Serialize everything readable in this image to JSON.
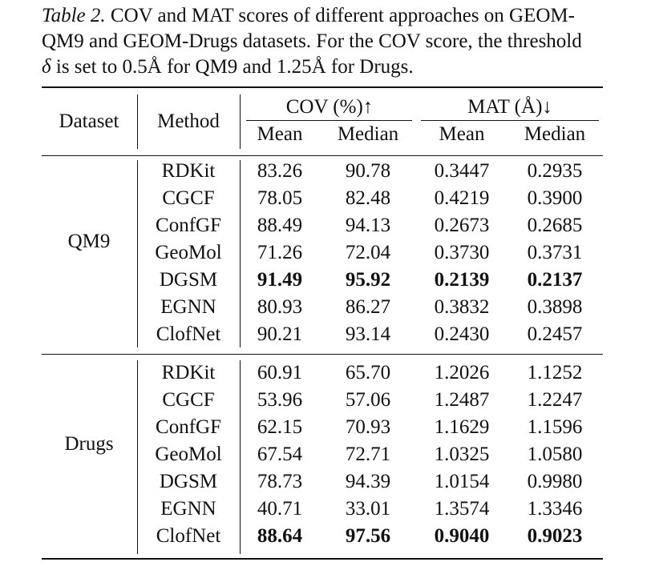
{
  "caption": {
    "label": "Table 2.",
    "line1": " COV and MAT scores of different approaches on GEOM-",
    "line2": "QM9 and GEOM-Drugs datasets. For the COV score, the threshold",
    "delta": "δ",
    "line3": " is set to 0.5Å for QM9 and 1.25Å for Drugs."
  },
  "header": {
    "dataset": "Dataset",
    "method": "Method",
    "cov": "COV (%)↑",
    "mat": "MAT (Å)↓",
    "sub": [
      "Mean",
      "Median",
      "Mean",
      "Median"
    ]
  },
  "groups": [
    {
      "name": "QM9",
      "rows": [
        {
          "method": "RDKit",
          "values": [
            "83.26",
            "90.78",
            "0.3447",
            "0.2935"
          ],
          "bold": [
            false,
            false,
            false,
            false
          ]
        },
        {
          "method": "CGCF",
          "values": [
            "78.05",
            "82.48",
            "0.4219",
            "0.3900"
          ],
          "bold": [
            false,
            false,
            false,
            false
          ]
        },
        {
          "method": "ConfGF",
          "values": [
            "88.49",
            "94.13",
            "0.2673",
            "0.2685"
          ],
          "bold": [
            false,
            false,
            false,
            false
          ]
        },
        {
          "method": "GeoMol",
          "values": [
            "71.26",
            "72.04",
            "0.3730",
            "0.3731"
          ],
          "bold": [
            false,
            false,
            false,
            false
          ]
        },
        {
          "method": "DGSM",
          "values": [
            "91.49",
            "95.92",
            "0.2139",
            "0.2137"
          ],
          "bold": [
            true,
            true,
            true,
            true
          ]
        },
        {
          "method": "EGNN",
          "values": [
            "80.93",
            "86.27",
            "0.3832",
            "0.3898"
          ],
          "bold": [
            false,
            false,
            false,
            false
          ]
        },
        {
          "method": "ClofNet",
          "values": [
            "90.21",
            "93.14",
            "0.2430",
            "0.2457"
          ],
          "bold": [
            false,
            false,
            false,
            false
          ]
        }
      ]
    },
    {
      "name": "Drugs",
      "rows": [
        {
          "method": "RDKit",
          "values": [
            "60.91",
            "65.70",
            "1.2026",
            "1.1252"
          ],
          "bold": [
            false,
            false,
            false,
            false
          ]
        },
        {
          "method": "CGCF",
          "values": [
            "53.96",
            "57.06",
            "1.2487",
            "1.2247"
          ],
          "bold": [
            false,
            false,
            false,
            false
          ]
        },
        {
          "method": "ConfGF",
          "values": [
            "62.15",
            "70.93",
            "1.1629",
            "1.1596"
          ],
          "bold": [
            false,
            false,
            false,
            false
          ]
        },
        {
          "method": "GeoMol",
          "values": [
            "67.54",
            "72.71",
            "1.0325",
            "1.0580"
          ],
          "bold": [
            false,
            false,
            false,
            false
          ]
        },
        {
          "method": "DGSM",
          "values": [
            "78.73",
            "94.39",
            "1.0154",
            "0.9980"
          ],
          "bold": [
            false,
            false,
            false,
            false
          ]
        },
        {
          "method": "EGNN",
          "values": [
            "40.71",
            "33.01",
            "1.3574",
            "1.3346"
          ],
          "bold": [
            false,
            false,
            false,
            false
          ]
        },
        {
          "method": "ClofNet",
          "values": [
            "88.64",
            "97.56",
            "0.9040",
            "0.9023"
          ],
          "bold": [
            true,
            true,
            true,
            true
          ]
        }
      ]
    }
  ]
}
